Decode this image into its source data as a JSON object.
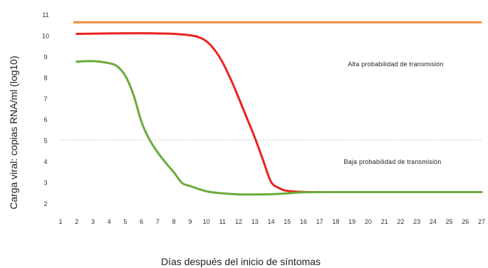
{
  "chart_data": {
    "type": "line",
    "title": "",
    "xlabel": "Días después del inicio de síntomas",
    "ylabel": "Carga viral: copias RNA/ml (log10)",
    "x_ticks": [
      1,
      2,
      3,
      4,
      5,
      6,
      7,
      8,
      9,
      10,
      11,
      12,
      13,
      14,
      15,
      16,
      17,
      18,
      19,
      20,
      21,
      22,
      23,
      24,
      25,
      26,
      27
    ],
    "y_ticks": [
      2,
      3,
      4,
      5,
      6,
      7,
      8,
      9,
      10,
      11
    ],
    "xlim": [
      1,
      27
    ],
    "ylim": [
      2,
      11
    ],
    "grid": false,
    "reference_lines": [
      {
        "axis": "y",
        "value": 10.65,
        "color": "#ed8b3a",
        "style": "solid"
      },
      {
        "axis": "y",
        "value": 5.05,
        "color": "#c8c8c8",
        "style": "dashed"
      }
    ],
    "series": [
      {
        "color": "#e8231f",
        "x": [
          2,
          4,
          6,
          7,
          8,
          9,
          9.5,
          10,
          10.5,
          11,
          11.5,
          12,
          12.5,
          13,
          13.5,
          14,
          14.5,
          15,
          16,
          18,
          20,
          22,
          24,
          26,
          27
        ],
        "y": [
          10.1,
          10.12,
          10.13,
          10.12,
          10.1,
          10.03,
          9.95,
          9.75,
          9.35,
          8.75,
          7.95,
          7.05,
          6.1,
          5.15,
          4.1,
          3.05,
          2.75,
          2.62,
          2.57,
          2.56,
          2.56,
          2.56,
          2.56,
          2.56,
          2.56
        ]
      },
      {
        "color": "#6aab3c",
        "x": [
          2,
          3,
          4,
          4.5,
          5,
          5.5,
          6,
          6.5,
          7,
          7.5,
          8,
          8.5,
          9,
          10,
          11,
          12,
          13,
          14,
          15,
          16,
          18,
          20,
          22,
          24,
          26,
          27
        ],
        "y": [
          8.78,
          8.8,
          8.7,
          8.55,
          8.1,
          7.2,
          5.9,
          5.05,
          4.45,
          3.95,
          3.5,
          3.0,
          2.85,
          2.6,
          2.5,
          2.45,
          2.45,
          2.46,
          2.5,
          2.55,
          2.56,
          2.56,
          2.56,
          2.56,
          2.56,
          2.56
        ]
      }
    ],
    "annotations": [
      {
        "text": "Alta probabilidad de transmisión",
        "x": 21.7,
        "y": 8.65
      },
      {
        "text": "Baja probabilidad de transmisión",
        "x": 21.5,
        "y": 4.0
      }
    ]
  }
}
